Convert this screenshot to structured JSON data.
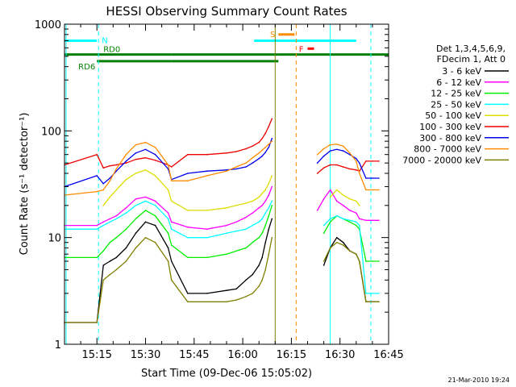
{
  "chart_data": {
    "type": "line",
    "title": "HESSI Observing Summary Count Rates",
    "xlabel": "Start Time (09-Dec-06 15:05:02)",
    "ylabel": "Count Rate (s⁻¹ detector⁻¹)",
    "yscale": "log",
    "ylim": [
      1,
      1000
    ],
    "xlim_minutes_since_1505": [
      0,
      100
    ],
    "x_ticks": [
      "15:15",
      "15:30",
      "15:45",
      "16:00",
      "16:15",
      "16:30",
      "16:45"
    ],
    "y_ticks": [
      "1",
      "10",
      "100",
      "1000"
    ],
    "timestamp": "21-Mar-2010 19:24",
    "legend": {
      "position": "right",
      "header": [
        "Det 1,3,4,5,6,9,",
        "FDecim 1, Att 0"
      ],
      "entries": [
        {
          "label": "3 - 6 keV",
          "color": "#000000"
        },
        {
          "label": "6 - 12 keV",
          "color": "#ff00ff"
        },
        {
          "label": "12 - 25 keV",
          "color": "#00ee00"
        },
        {
          "label": "25 - 50 keV",
          "color": "#00ffff"
        },
        {
          "label": "50 - 100 keV",
          "color": "#dddd00"
        },
        {
          "label": "100 - 300 keV",
          "color": "#ee0000"
        },
        {
          "label": "300 - 800 keV",
          "color": "#0000ee"
        },
        {
          "label": "800 - 7000 keV",
          "color": "#ff8c00"
        },
        {
          "label": "7000 - 20000 keV",
          "color": "#808000"
        }
      ]
    },
    "flags": [
      {
        "label": "N",
        "color": "#00ffff",
        "y": 700,
        "segments": [
          [
            0,
            10
          ],
          [
            58.5,
            90
          ]
        ]
      },
      {
        "label": "RD0",
        "color": "#008000",
        "y": 520,
        "segments": [
          [
            0,
            33
          ],
          [
            33,
            66
          ],
          [
            66,
            100
          ]
        ]
      },
      {
        "label": "RD6",
        "color": "#008000",
        "y": 450,
        "segments": [
          [
            10,
            33
          ],
          [
            33,
            66
          ]
        ]
      },
      {
        "label": "S",
        "color": "#ff8c00",
        "y": 800,
        "segments": [
          [
            66,
            71
          ]
        ]
      },
      {
        "label": "F",
        "color": "#ff0000",
        "y": 590,
        "segments": [
          [
            75,
            77
          ]
        ]
      }
    ],
    "verticals": [
      {
        "x": 0.5,
        "color": "#00ffff",
        "dash": false
      },
      {
        "x": 10.5,
        "color": "#00ffff",
        "dash": true
      },
      {
        "x": 65,
        "color": "#808000",
        "dash": false
      },
      {
        "x": 71.5,
        "color": "#ff8c00",
        "dash": true
      },
      {
        "x": 82,
        "color": "#00ffff",
        "dash": false
      },
      {
        "x": 94.5,
        "color": "#00ffff",
        "dash": true
      }
    ],
    "series": [
      {
        "name": "3 - 6 keV",
        "color": "#000000",
        "x": [
          0,
          10,
          12,
          14,
          16,
          19,
          22,
          25,
          28,
          32,
          33,
          38,
          44,
          50,
          53,
          56,
          58,
          60,
          61,
          62,
          63,
          64,
          65,
          70,
          72,
          74,
          76,
          78,
          80,
          82,
          84,
          86,
          88,
          90,
          91,
          93,
          95,
          97
        ],
        "y": [
          1.6,
          1.6,
          5.5,
          6,
          6.5,
          8,
          11,
          14,
          13,
          8,
          6,
          3,
          3,
          3.2,
          3.3,
          4,
          4.5,
          5.5,
          6.5,
          9,
          12,
          15,
          0,
          0,
          0,
          0,
          0,
          0,
          5.5,
          8,
          10,
          9,
          7.5,
          7,
          6,
          2.5,
          2.5,
          2.5
        ]
      },
      {
        "name": "6 - 12 keV",
        "color": "#ff00ff",
        "x": [
          0,
          10,
          12,
          14,
          16,
          19,
          22,
          25,
          28,
          32,
          33,
          38,
          44,
          50,
          53,
          56,
          58,
          60,
          61,
          62,
          63,
          64,
          65,
          70,
          72,
          74,
          76,
          78,
          80,
          82,
          84,
          86,
          88,
          90,
          91,
          93,
          95,
          97
        ],
        "y": [
          13,
          13,
          14,
          15,
          16,
          19,
          23,
          24,
          22,
          17,
          14,
          12.5,
          12,
          13,
          14,
          15.5,
          17,
          19,
          20,
          22,
          25,
          30,
          0,
          0,
          0,
          0,
          0,
          18,
          23,
          28,
          22,
          20,
          18,
          17,
          15,
          14.5,
          14.5,
          14.5
        ]
      },
      {
        "name": "12 - 25 keV",
        "color": "#00ee00",
        "x": [
          0,
          10,
          12,
          14,
          16,
          19,
          22,
          25,
          28,
          32,
          33,
          38,
          44,
          50,
          53,
          56,
          58,
          60,
          61,
          62,
          63,
          64,
          65,
          70,
          72,
          74,
          76,
          78,
          80,
          82,
          84,
          86,
          88,
          90,
          91,
          93,
          95,
          97
        ],
        "y": [
          6.5,
          6.5,
          7.5,
          9,
          10,
          12,
          15,
          18,
          16,
          11,
          8.5,
          6.5,
          6.5,
          7,
          7.5,
          8,
          9,
          10,
          11,
          13,
          16,
          20,
          0,
          0,
          0,
          0,
          0,
          0,
          11,
          14,
          16,
          15,
          14,
          13,
          12,
          6,
          6,
          6
        ]
      },
      {
        "name": "25 - 50 keV",
        "color": "#00ffff",
        "x": [
          0,
          10,
          12,
          14,
          16,
          19,
          22,
          25,
          28,
          32,
          33,
          38,
          44,
          50,
          53,
          56,
          58,
          60,
          61,
          62,
          63,
          64,
          65,
          70,
          72,
          74,
          76,
          78,
          80,
          82,
          84,
          86,
          88,
          90,
          91,
          93,
          95,
          97
        ],
        "y": [
          12,
          12,
          13,
          14,
          15,
          17,
          20,
          22,
          20,
          15,
          12,
          10,
          10,
          11,
          11.5,
          12,
          13,
          14,
          15,
          17,
          19,
          22,
          0,
          0,
          0,
          0,
          0,
          0,
          13,
          15,
          16,
          15,
          14.5,
          14,
          13,
          3,
          3,
          3
        ]
      },
      {
        "name": "50 - 100 keV",
        "color": "#dddd00",
        "x": [
          0,
          10,
          12,
          14,
          16,
          19,
          22,
          25,
          28,
          32,
          33,
          38,
          44,
          50,
          53,
          56,
          58,
          60,
          61,
          62,
          63,
          64,
          65,
          70,
          72,
          74,
          76,
          78,
          80,
          82,
          84,
          86,
          88,
          90,
          91,
          93,
          95,
          97
        ],
        "y": [
          0,
          0,
          20,
          24,
          28,
          35,
          40,
          43,
          38,
          28,
          22,
          18,
          18,
          19,
          20,
          21,
          22,
          24,
          26,
          28,
          32,
          38,
          0,
          0,
          0,
          0,
          0,
          0,
          0,
          24,
          28,
          25,
          23,
          22,
          20,
          0,
          0,
          0
        ]
      },
      {
        "name": "100 - 300 keV",
        "color": "#ee0000",
        "x": [
          0,
          10,
          12,
          14,
          16,
          19,
          22,
          25,
          28,
          32,
          33,
          38,
          44,
          50,
          53,
          56,
          58,
          60,
          61,
          62,
          63,
          64,
          65,
          70,
          72,
          74,
          76,
          78,
          80,
          82,
          84,
          86,
          88,
          90,
          91,
          93,
          95,
          97
        ],
        "y": [
          48,
          60,
          45,
          47,
          48,
          50,
          54,
          56,
          53,
          48,
          46,
          60,
          60,
          62,
          64,
          68,
          72,
          78,
          85,
          95,
          110,
          130,
          0,
          0,
          0,
          0,
          0,
          40,
          45,
          48,
          48,
          46,
          44,
          43,
          42,
          52,
          52,
          52
        ]
      },
      {
        "name": "300 - 800 keV",
        "color": "#0000ee",
        "x": [
          0,
          10,
          12,
          14,
          16,
          19,
          22,
          25,
          28,
          32,
          33,
          38,
          44,
          50,
          53,
          56,
          58,
          60,
          61,
          62,
          63,
          64,
          65,
          70,
          72,
          74,
          76,
          78,
          80,
          82,
          84,
          86,
          88,
          90,
          91,
          93,
          95,
          97
        ],
        "y": [
          30,
          38,
          32,
          36,
          42,
          52,
          62,
          67,
          60,
          44,
          35,
          40,
          42,
          43,
          44,
          46,
          50,
          55,
          58,
          63,
          70,
          85,
          0,
          0,
          0,
          0,
          0,
          50,
          58,
          65,
          67,
          65,
          60,
          55,
          50,
          36,
          36,
          36
        ]
      },
      {
        "name": "800 - 7000 keV",
        "color": "#ff8c00",
        "x": [
          0,
          10,
          12,
          14,
          16,
          19,
          22,
          25,
          28,
          32,
          33,
          38,
          44,
          50,
          53,
          56,
          58,
          60,
          61,
          62,
          63,
          64,
          65,
          70,
          72,
          74,
          76,
          78,
          80,
          82,
          84,
          86,
          88,
          90,
          91,
          93,
          95,
          97
        ],
        "y": [
          25,
          27,
          28,
          34,
          44,
          60,
          74,
          78,
          70,
          48,
          34,
          34,
          38,
          42,
          46,
          50,
          56,
          62,
          66,
          70,
          75,
          80,
          0,
          0,
          0,
          0,
          0,
          60,
          68,
          74,
          75,
          72,
          62,
          52,
          40,
          28,
          28,
          28
        ]
      },
      {
        "name": "7000 - 20000 keV",
        "color": "#808000",
        "x": [
          0,
          10,
          12,
          14,
          16,
          19,
          22,
          25,
          28,
          32,
          33,
          38,
          44,
          50,
          53,
          56,
          58,
          60,
          61,
          62,
          63,
          64,
          65,
          70,
          72,
          74,
          76,
          78,
          80,
          82,
          84,
          86,
          88,
          90,
          91,
          93,
          95,
          97
        ],
        "y": [
          1.6,
          1.6,
          4,
          4.5,
          5,
          6,
          8,
          10,
          9,
          6,
          4,
          2.5,
          2.5,
          2.5,
          2.6,
          2.8,
          3,
          3.5,
          4,
          5,
          7,
          10,
          0,
          0,
          0,
          0,
          0,
          0,
          6,
          8,
          9,
          8.5,
          7.5,
          7,
          6,
          2.5,
          2.5,
          2.5
        ]
      }
    ]
  }
}
